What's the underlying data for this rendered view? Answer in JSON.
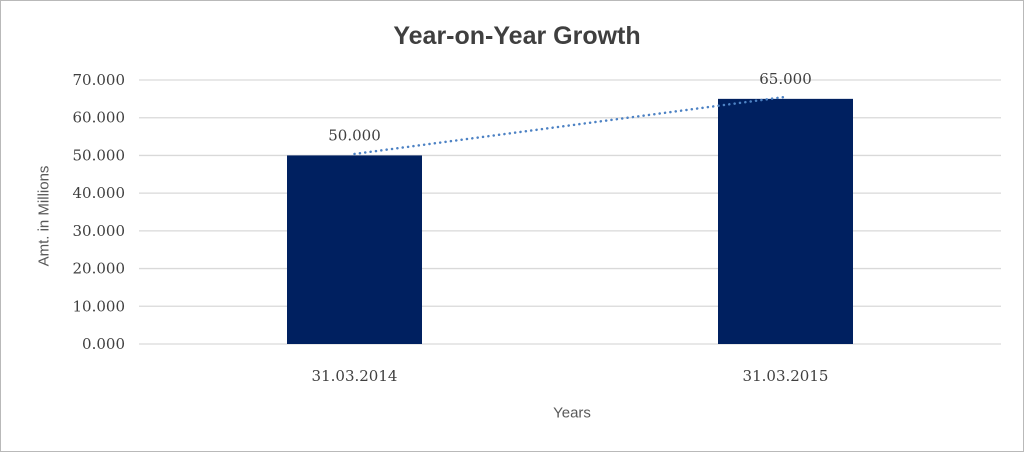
{
  "chart_data": {
    "type": "bar",
    "title": "Year-on-Year Growth",
    "xlabel": "Years",
    "ylabel": "Amt. in Millions",
    "categories": [
      "31.03.2014",
      "31.03.2015"
    ],
    "series": [
      {
        "name": "Amt. in Millions",
        "values": [
          50,
          65
        ]
      }
    ],
    "data_labels": [
      "50.000",
      "65.000"
    ],
    "ylim": [
      0,
      70
    ],
    "ytick_step": 10,
    "ytick_labels": [
      "0.000",
      "10.000",
      "20.000",
      "30.000",
      "40.000",
      "50.000",
      "60.000",
      "70.000"
    ],
    "grid": true,
    "legend": "none",
    "trendline": {
      "type": "linear",
      "style": "dotted"
    },
    "colors": {
      "bar": "#002060",
      "trendline": "#4d82c4",
      "gridline": "#d9d9d9",
      "title_text": "#3f3f3f",
      "tick_text": "#404040",
      "axis_title_text": "#595959",
      "background": "#ffffff",
      "frame_border": "#b9b9b9"
    }
  }
}
